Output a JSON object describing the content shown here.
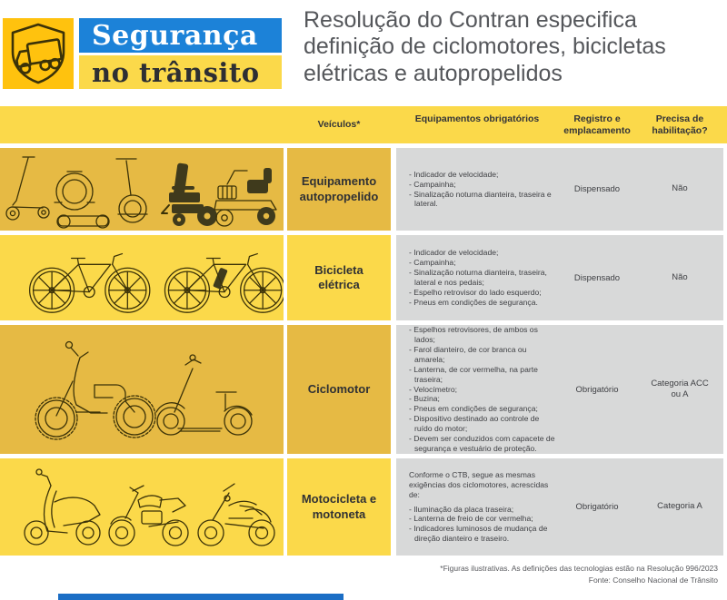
{
  "logo": {
    "icon": "truck-shield-icon",
    "line1": "Segurança",
    "line2": "no trânsito"
  },
  "title": "Resolução do Contran especifica definição de ciclomotores, bicicletas elétricas e autopropelidos",
  "table": {
    "columns": [
      "Veículos*",
      "Equipamentos obrigatórios",
      "Registro e emplacamento",
      "Precisa de habilitação?"
    ],
    "rows": [
      {
        "vehicle": "Equipamento autopropelido",
        "illustration": "kick-scooter, electric-unicycle, hoverboard, segway, power-wheelchair, mobility-scooter",
        "intro": "",
        "equipment": [
          "Indicador de velocidade;",
          "Campainha;",
          "Sinalização noturna dianteira, traseira e lateral."
        ],
        "registro": "Dispensado",
        "habilitacao": "Não"
      },
      {
        "vehicle": "Bicicleta elétrica",
        "illustration": "electric-bicycle, electric-bicycle",
        "intro": "",
        "equipment": [
          "Indicador de velocidade;",
          "Campainha;",
          "Sinalização noturna dianteira, traseira, lateral e nos pedais;",
          "Espelho retrovisor do lado esquerdo;",
          "Pneus em condições de segurança."
        ],
        "registro": "Dispensado",
        "habilitacao": "Não"
      },
      {
        "vehicle": "Ciclomotor",
        "illustration": "electric-moped, fat-tire-scooter",
        "intro": "",
        "equipment": [
          "Espelhos retrovisores, de ambos os lados;",
          "Farol dianteiro, de cor branca ou amarela;",
          "Lanterna, de cor vermelha, na parte traseira;",
          "Velocímetro;",
          "Buzina;",
          "Pneus em condições de segurança;",
          "Dispositivo destinado ao controle de ruído do motor;",
          "Devem ser conduzidos com capacete de segurança e vestuário de proteção."
        ],
        "registro": "Obrigatório",
        "habilitacao": "Categoria ACC ou A"
      },
      {
        "vehicle": "Motocicleta e motoneta",
        "illustration": "scooter-motoneta, naked-motorcycle, cruiser-motorcycle",
        "intro": "Conforme o CTB, segue as mesmas exigências dos ciclomotores, acrescidas de:",
        "equipment": [
          "Iluminação da placa traseira;",
          "Lanterna de freio de cor vermelha;",
          "Indicadores luminosos de mudança de direção dianteiro e traseiro."
        ],
        "registro": "Obrigatório",
        "habilitacao": "Categoria A"
      }
    ]
  },
  "footer": {
    "note": "*Figuras ilustrativas. As definições das tecnologias estão na Resolução 996/2023",
    "source": "Fonte: Conselho Nacional de Trânsito"
  },
  "colors": {
    "blue": "#1c82d8",
    "logo_yellow": "#ffc20e",
    "bright_yellow": "#fbd94a",
    "gold": "#e6ba44",
    "panel_gray": "#d8d9d9",
    "dark_text": "#303134",
    "title_gray": "#55575b",
    "footer_blue_bar": "#1b6ec5"
  }
}
